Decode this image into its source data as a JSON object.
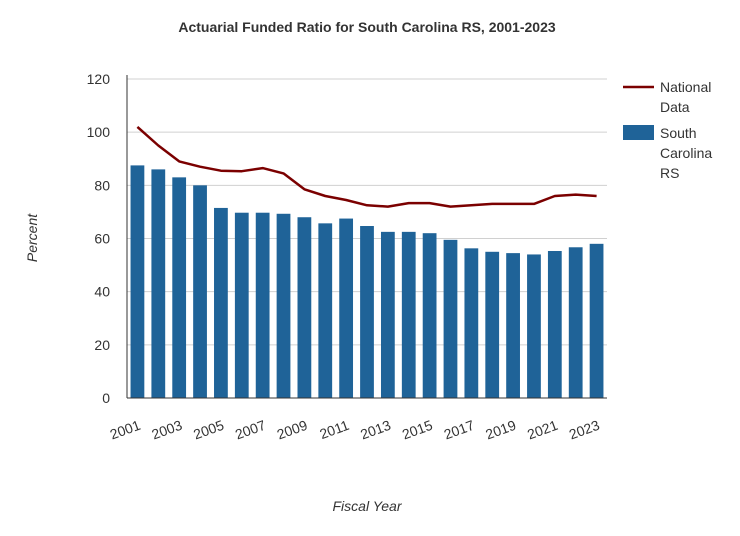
{
  "chart_data": {
    "type": "bar",
    "title": "Actuarial Funded Ratio for South Carolina RS, 2001-2023",
    "xlabel": "Fiscal Year",
    "ylabel": "Percent",
    "ylim": [
      0,
      120
    ],
    "yticks": [
      "0",
      "20",
      "40",
      "60",
      "80",
      "100",
      "120"
    ],
    "categories": [
      "2001",
      "2002",
      "2003",
      "2004",
      "2005",
      "2006",
      "2007",
      "2008",
      "2009",
      "2010",
      "2011",
      "2012",
      "2013",
      "2014",
      "2015",
      "2016",
      "2017",
      "2018",
      "2019",
      "2020",
      "2021",
      "2022",
      "2023"
    ],
    "xtick_labels": [
      "2001",
      "2003",
      "2005",
      "2007",
      "2009",
      "2011",
      "2013",
      "2015",
      "2017",
      "2019",
      "2021",
      "2023"
    ],
    "grid": true,
    "legend_position": "right",
    "series": [
      {
        "name": "South Carolina RS",
        "type": "bar",
        "color": "#1f6398",
        "values": [
          87.5,
          86,
          83,
          80,
          71.5,
          69.7,
          69.7,
          69.3,
          68,
          65.7,
          67.5,
          64.7,
          62.5,
          62.5,
          62,
          59.5,
          56.3,
          55,
          54.5,
          54,
          55.3,
          56.7,
          58
        ]
      },
      {
        "name": "National Data",
        "type": "line",
        "color": "#7b0000",
        "values": [
          102,
          95,
          89,
          87,
          85.5,
          85.3,
          86.5,
          84.5,
          78.5,
          76,
          74.5,
          72.5,
          72,
          73.3,
          73.3,
          72,
          72.5,
          73,
          73,
          73,
          76,
          76.5,
          76
        ]
      }
    ],
    "legend": {
      "national": [
        "National",
        "Data"
      ],
      "state": [
        "South",
        "Carolina",
        "RS"
      ]
    }
  }
}
